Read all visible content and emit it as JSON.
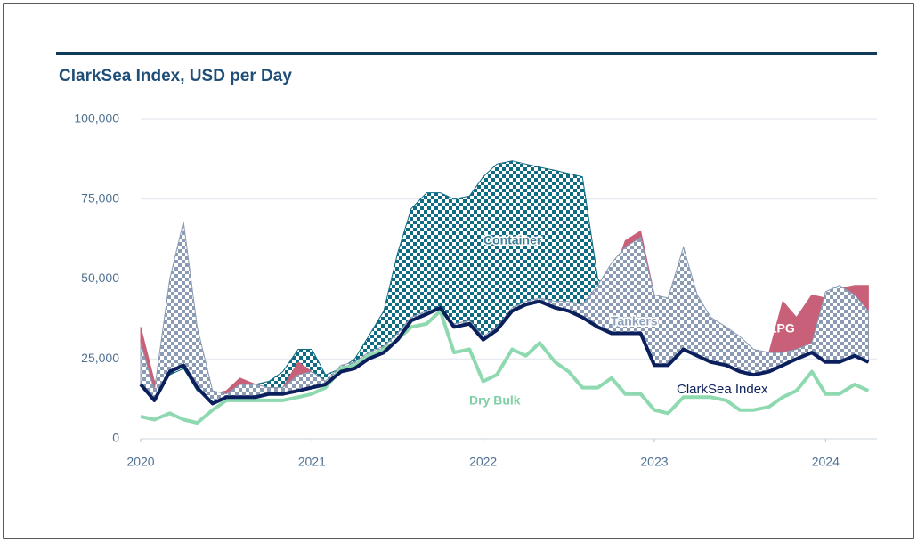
{
  "chart_data": {
    "type": "area",
    "title": "ClarkSea Index, USD per Day",
    "x": [
      2020,
      2020.08,
      2020.17,
      2020.25,
      2020.33,
      2020.42,
      2020.5,
      2020.58,
      2020.67,
      2020.75,
      2020.83,
      2020.92,
      2021,
      2021.08,
      2021.17,
      2021.25,
      2021.33,
      2021.42,
      2021.5,
      2021.58,
      2021.67,
      2021.75,
      2021.83,
      2021.92,
      2022,
      2022.08,
      2022.17,
      2022.25,
      2022.33,
      2022.42,
      2022.5,
      2022.58,
      2022.67,
      2022.75,
      2022.83,
      2022.92,
      2023,
      2023.08,
      2023.17,
      2023.25,
      2023.33,
      2023.42,
      2023.5,
      2023.58,
      2023.67,
      2023.75,
      2023.83,
      2023.92,
      2024,
      2024.08,
      2024.17,
      2024.25
    ],
    "series": [
      {
        "name": "ClarkSea Index",
        "color": "#0b1f5c",
        "style": "line",
        "values": [
          17000,
          12000,
          21000,
          23000,
          16000,
          11000,
          13000,
          13000,
          13000,
          14000,
          14000,
          15000,
          16000,
          17000,
          21000,
          22000,
          25000,
          27000,
          31000,
          37000,
          39000,
          41000,
          35000,
          36000,
          31000,
          34000,
          40000,
          42000,
          43000,
          41000,
          40000,
          38000,
          35000,
          33000,
          33000,
          33000,
          23000,
          23000,
          28000,
          26000,
          24000,
          23000,
          21000,
          20000,
          21000,
          23000,
          25000,
          27000,
          24000,
          24000,
          26000,
          24000
        ]
      },
      {
        "name": "Dry Bulk",
        "color": "#8fd9b0",
        "style": "line",
        "values": [
          7000,
          6000,
          8000,
          6000,
          5000,
          9000,
          12000,
          12000,
          12000,
          12000,
          12000,
          13000,
          14000,
          16000,
          22000,
          23000,
          26000,
          28000,
          31000,
          35000,
          36000,
          40000,
          27000,
          28000,
          18000,
          20000,
          28000,
          26000,
          30000,
          24000,
          21000,
          16000,
          16000,
          19000,
          14000,
          14000,
          9000,
          8000,
          13000,
          13000,
          13000,
          12000,
          9000,
          9000,
          10000,
          13000,
          15000,
          21000,
          14000,
          14000,
          17000,
          15000
        ]
      },
      {
        "name": "Container",
        "color": "#0e6b82",
        "style": "area",
        "values": [
          17000,
          13000,
          20000,
          22000,
          15000,
          13000,
          14000,
          16000,
          17000,
          18000,
          21000,
          28000,
          28000,
          20000,
          22000,
          25000,
          32000,
          40000,
          58000,
          72000,
          77000,
          77000,
          75000,
          76000,
          82000,
          86000,
          87000,
          86000,
          85000,
          84000,
          83000,
          82000,
          50000,
          45000,
          40000,
          38000,
          30000,
          30000,
          35000,
          35000,
          36000,
          33000,
          30000,
          28000,
          24000,
          24000,
          26000,
          28000,
          25000,
          25000,
          27000,
          25000
        ]
      },
      {
        "name": "LPG",
        "color": "#c8607a",
        "style": "area",
        "values": [
          35000,
          18000,
          21000,
          24000,
          16000,
          14000,
          15000,
          19000,
          17000,
          16000,
          16000,
          24000,
          21000,
          17000,
          21000,
          22000,
          25000,
          27000,
          31000,
          37000,
          39000,
          41000,
          35000,
          36000,
          31000,
          34000,
          40000,
          42000,
          43000,
          41000,
          40000,
          38000,
          35000,
          50000,
          62000,
          65000,
          45000,
          43000,
          52000,
          40000,
          32000,
          26000,
          25000,
          26000,
          27000,
          43000,
          38000,
          45000,
          44000,
          47000,
          48000,
          48000
        ]
      },
      {
        "name": "Tankers",
        "color": "#8a9bb3",
        "style": "area",
        "values": [
          30000,
          15000,
          50000,
          68000,
          35000,
          15000,
          14000,
          17000,
          17000,
          16000,
          16000,
          20000,
          21000,
          18000,
          23000,
          24000,
          27000,
          29000,
          33000,
          38000,
          40000,
          41000,
          36000,
          37000,
          32000,
          35000,
          41000,
          43000,
          44000,
          43000,
          43000,
          42000,
          48000,
          55000,
          60000,
          63000,
          45000,
          44000,
          60000,
          45000,
          38000,
          35000,
          32000,
          28000,
          27000,
          27000,
          28000,
          30000,
          46000,
          48000,
          45000,
          40000
        ]
      }
    ],
    "xlim": [
      2020,
      2024.3
    ],
    "xticks": [
      2020,
      2021,
      2022,
      2023,
      2024
    ],
    "ylim": [
      0,
      100000
    ],
    "yticks": [
      0,
      {
        "value": 25000,
        "label": "25,000"
      },
      {
        "value": 50000,
        "label": "50,000"
      },
      {
        "value": 75000,
        "label": "75,000"
      },
      {
        "value": 100000,
        "label": "100,000"
      }
    ],
    "grid": true
  }
}
